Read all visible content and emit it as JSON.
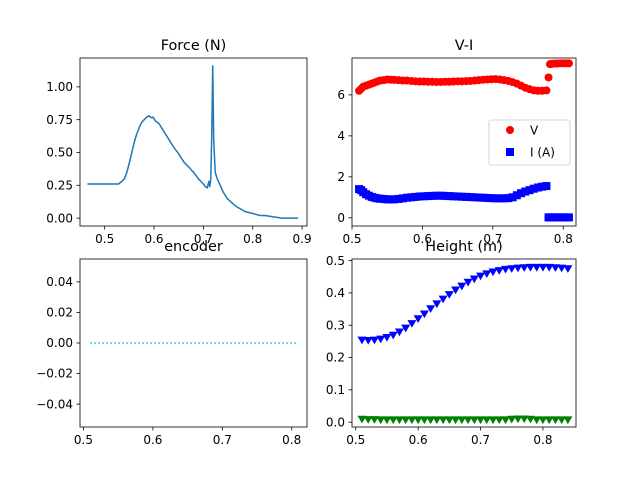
{
  "chart_data": [
    {
      "id": "force",
      "type": "line",
      "title": "Force (N)",
      "xlim": [
        0.45,
        0.91
      ],
      "ylim": [
        -0.06,
        1.22
      ],
      "xticks": [
        0.5,
        0.6,
        0.7,
        0.8,
        0.9
      ],
      "xtick_labels": [
        "0.5",
        "0.6",
        "0.7",
        "0.8",
        "0.9"
      ],
      "yticks": [
        0.0,
        0.25,
        0.5,
        0.75,
        1.0
      ],
      "ytick_labels": [
        "0.00",
        "0.25",
        "0.50",
        "0.75",
        "1.00"
      ],
      "series": [
        {
          "color": "#1f77b4",
          "style": "solid",
          "x": [
            0.465,
            0.478,
            0.49,
            0.5,
            0.51,
            0.52,
            0.528,
            0.535,
            0.54,
            0.545,
            0.55,
            0.555,
            0.56,
            0.565,
            0.57,
            0.575,
            0.58,
            0.585,
            0.59,
            0.594,
            0.598,
            0.603,
            0.61,
            0.62,
            0.63,
            0.64,
            0.65,
            0.66,
            0.67,
            0.68,
            0.69,
            0.695,
            0.7,
            0.704,
            0.708,
            0.711,
            0.713,
            0.715,
            0.717,
            0.719,
            0.721,
            0.724,
            0.728,
            0.733,
            0.74,
            0.748,
            0.757,
            0.766,
            0.775,
            0.785,
            0.795,
            0.805,
            0.815,
            0.825,
            0.84,
            0.86,
            0.875,
            0.892
          ],
          "y": [
            0.26,
            0.26,
            0.26,
            0.26,
            0.26,
            0.26,
            0.26,
            0.28,
            0.3,
            0.35,
            0.42,
            0.5,
            0.58,
            0.64,
            0.69,
            0.73,
            0.75,
            0.77,
            0.78,
            0.765,
            0.77,
            0.74,
            0.72,
            0.66,
            0.6,
            0.54,
            0.49,
            0.43,
            0.39,
            0.35,
            0.3,
            0.28,
            0.26,
            0.24,
            0.23,
            0.28,
            0.24,
            0.3,
            0.65,
            1.16,
            0.6,
            0.35,
            0.3,
            0.26,
            0.2,
            0.15,
            0.12,
            0.09,
            0.07,
            0.05,
            0.04,
            0.03,
            0.02,
            0.02,
            0.01,
            0.0,
            0.0,
            0.0
          ]
        }
      ]
    },
    {
      "id": "vi",
      "type": "scatter",
      "title": "V-I",
      "xlim": [
        0.5,
        0.818
      ],
      "ylim": [
        -0.4,
        7.8
      ],
      "xticks": [
        0.5,
        0.6,
        0.7,
        0.8
      ],
      "xtick_labels": [
        "0.5",
        "0.6",
        "0.7",
        "0.8"
      ],
      "yticks": [
        0,
        2,
        4,
        6
      ],
      "ytick_labels": [
        "0",
        "2",
        "4",
        "6"
      ],
      "legend": {
        "placement": "center-right",
        "entries": [
          {
            "label": "V",
            "color": "#ff0000",
            "marker": "circle"
          },
          {
            "label": "I (A)",
            "color": "#0000ff",
            "marker": "square"
          }
        ]
      },
      "series": [
        {
          "name": "V",
          "color": "#ff0000",
          "marker": "circle",
          "x": [
            0.51,
            0.513,
            0.516,
            0.52,
            0.524,
            0.528,
            0.532,
            0.536,
            0.54,
            0.545,
            0.55,
            0.555,
            0.56,
            0.566,
            0.572,
            0.578,
            0.584,
            0.59,
            0.596,
            0.602,
            0.608,
            0.614,
            0.62,
            0.626,
            0.632,
            0.638,
            0.644,
            0.65,
            0.656,
            0.662,
            0.668,
            0.674,
            0.68,
            0.686,
            0.692,
            0.698,
            0.704,
            0.71,
            0.716,
            0.722,
            0.728,
            0.734,
            0.74,
            0.746,
            0.752,
            0.758,
            0.764,
            0.77,
            0.776,
            0.779,
            0.781,
            0.784,
            0.788,
            0.792,
            0.796,
            0.8,
            0.804,
            0.808
          ],
          "y": [
            6.2,
            6.3,
            6.4,
            6.45,
            6.5,
            6.55,
            6.6,
            6.65,
            6.7,
            6.72,
            6.75,
            6.74,
            6.73,
            6.72,
            6.7,
            6.7,
            6.68,
            6.66,
            6.65,
            6.65,
            6.64,
            6.64,
            6.63,
            6.63,
            6.64,
            6.64,
            6.65,
            6.66,
            6.66,
            6.67,
            6.68,
            6.7,
            6.72,
            6.74,
            6.75,
            6.76,
            6.77,
            6.75,
            6.72,
            6.68,
            6.62,
            6.55,
            6.45,
            6.35,
            6.28,
            6.22,
            6.2,
            6.2,
            6.22,
            6.85,
            7.5,
            7.52,
            7.53,
            7.53,
            7.54,
            7.54,
            7.54,
            7.54
          ]
        },
        {
          "name": "I (A)",
          "color": "#0000ff",
          "marker": "square",
          "x": [
            0.51,
            0.513,
            0.516,
            0.52,
            0.524,
            0.528,
            0.532,
            0.536,
            0.54,
            0.545,
            0.55,
            0.555,
            0.56,
            0.566,
            0.572,
            0.578,
            0.584,
            0.59,
            0.596,
            0.602,
            0.608,
            0.614,
            0.62,
            0.626,
            0.632,
            0.638,
            0.644,
            0.65,
            0.656,
            0.662,
            0.668,
            0.674,
            0.68,
            0.686,
            0.692,
            0.698,
            0.704,
            0.71,
            0.716,
            0.722,
            0.728,
            0.734,
            0.74,
            0.746,
            0.752,
            0.758,
            0.764,
            0.77,
            0.776,
            0.779,
            0.781,
            0.784,
            0.788,
            0.792,
            0.796,
            0.8,
            0.804,
            0.808
          ],
          "y": [
            1.4,
            1.35,
            1.25,
            1.15,
            1.08,
            1.02,
            0.98,
            0.95,
            0.93,
            0.92,
            0.9,
            0.9,
            0.9,
            0.92,
            0.95,
            0.98,
            1.0,
            1.02,
            1.04,
            1.05,
            1.06,
            1.07,
            1.08,
            1.08,
            1.07,
            1.06,
            1.05,
            1.04,
            1.03,
            1.02,
            1.01,
            1.0,
            0.99,
            0.98,
            0.97,
            0.96,
            0.95,
            0.95,
            0.95,
            0.96,
            1.0,
            1.1,
            1.2,
            1.28,
            1.35,
            1.42,
            1.48,
            1.52,
            1.55,
            0.02,
            0.02,
            0.02,
            0.02,
            0.02,
            0.02,
            0.02,
            0.02,
            0.02
          ]
        }
      ]
    },
    {
      "id": "encoder",
      "type": "line",
      "title": "encoder",
      "xlim": [
        0.495,
        0.822
      ],
      "ylim": [
        -0.055,
        0.055
      ],
      "xticks": [
        0.5,
        0.6,
        0.7,
        0.8
      ],
      "xtick_labels": [
        "0.5",
        "0.6",
        "0.7",
        "0.8"
      ],
      "yticks": [
        -0.04,
        -0.02,
        0.0,
        0.02,
        0.04
      ],
      "ytick_labels": [
        "−0.04",
        "−0.02",
        "0.00",
        "0.02",
        "0.04"
      ],
      "series": [
        {
          "color": "#17becf",
          "style": "dotted",
          "x": [
            0.51,
            0.808
          ],
          "y": [
            0.0,
            0.0
          ]
        }
      ]
    },
    {
      "id": "height",
      "type": "scatter",
      "title": "Height (m)",
      "xlim": [
        0.494,
        0.853
      ],
      "ylim": [
        -0.015,
        0.505
      ],
      "xticks": [
        0.5,
        0.6,
        0.7,
        0.8
      ],
      "xtick_labels": [
        "0.5",
        "0.6",
        "0.7",
        "0.8"
      ],
      "yticks": [
        0.0,
        0.1,
        0.2,
        0.3,
        0.4,
        0.5
      ],
      "ytick_labels": [
        "0.0",
        "0.1",
        "0.2",
        "0.3",
        "0.4",
        "0.5"
      ],
      "series": [
        {
          "color": "#0000ff",
          "marker": "triangle-down",
          "x": [
            0.51,
            0.52,
            0.53,
            0.54,
            0.55,
            0.56,
            0.57,
            0.58,
            0.59,
            0.6,
            0.61,
            0.62,
            0.63,
            0.64,
            0.65,
            0.66,
            0.67,
            0.68,
            0.69,
            0.7,
            0.71,
            0.72,
            0.73,
            0.74,
            0.75,
            0.76,
            0.77,
            0.78,
            0.79,
            0.8,
            0.81,
            0.82,
            0.83,
            0.84
          ],
          "y": [
            0.255,
            0.254,
            0.255,
            0.258,
            0.263,
            0.27,
            0.28,
            0.292,
            0.306,
            0.321,
            0.336,
            0.352,
            0.367,
            0.382,
            0.396,
            0.41,
            0.422,
            0.434,
            0.444,
            0.453,
            0.46,
            0.466,
            0.47,
            0.474,
            0.476,
            0.478,
            0.479,
            0.48,
            0.48,
            0.48,
            0.48,
            0.479,
            0.478,
            0.476
          ]
        },
        {
          "color": "#008000",
          "marker": "triangle-down",
          "x": [
            0.51,
            0.52,
            0.53,
            0.54,
            0.55,
            0.56,
            0.57,
            0.58,
            0.59,
            0.6,
            0.61,
            0.62,
            0.63,
            0.64,
            0.65,
            0.66,
            0.67,
            0.68,
            0.69,
            0.7,
            0.71,
            0.72,
            0.73,
            0.74,
            0.75,
            0.76,
            0.77,
            0.78,
            0.79,
            0.8,
            0.81,
            0.82,
            0.83,
            0.84
          ],
          "y": [
            0.01,
            0.009,
            0.009,
            0.008,
            0.008,
            0.008,
            0.008,
            0.008,
            0.008,
            0.008,
            0.008,
            0.008,
            0.008,
            0.008,
            0.008,
            0.008,
            0.008,
            0.008,
            0.008,
            0.008,
            0.008,
            0.008,
            0.008,
            0.008,
            0.01,
            0.011,
            0.011,
            0.01,
            0.008,
            0.008,
            0.008,
            0.008,
            0.008,
            0.008
          ]
        }
      ]
    }
  ]
}
